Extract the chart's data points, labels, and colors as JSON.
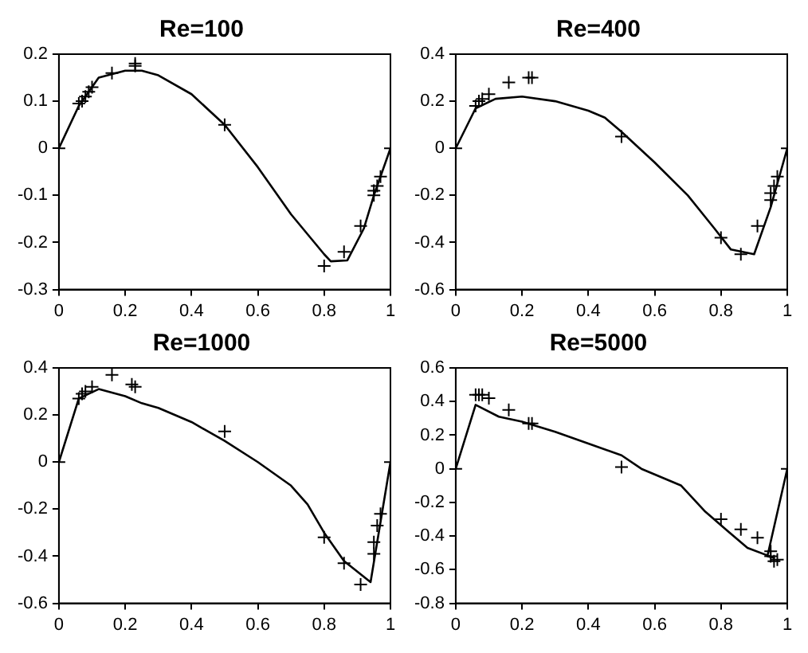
{
  "chart_data": [
    {
      "type": "line",
      "title": "Re=100",
      "xlim": [
        0,
        1
      ],
      "xticks": [
        0,
        0.2,
        0.4,
        0.6,
        0.8,
        1
      ],
      "ylim": [
        -0.3,
        0.2
      ],
      "yticks": [
        -0.3,
        -0.2,
        -0.1,
        0,
        0.1,
        0.2
      ],
      "grid": false,
      "legend": false,
      "series": [
        {
          "type": "line",
          "color": "#000000",
          "marker": "none",
          "line_style": "solid",
          "x": [
            0,
            0.06,
            0.12,
            0.2,
            0.25,
            0.3,
            0.4,
            0.5,
            0.6,
            0.7,
            0.8,
            0.82,
            0.87,
            0.92,
            0.95,
            1
          ],
          "values": [
            0,
            0.09,
            0.15,
            0.165,
            0.165,
            0.155,
            0.115,
            0.05,
            -0.04,
            -0.14,
            -0.225,
            -0.24,
            -0.238,
            -0.17,
            -0.1,
            0
          ]
        },
        {
          "type": "scatter",
          "color": "#000000",
          "marker": "cross",
          "x": [
            0,
            0.06,
            0.07,
            0.08,
            0.09,
            0.1,
            0.16,
            0.23,
            0.23,
            0.5,
            0.8,
            0.86,
            0.91,
            0.95,
            0.95,
            0.96,
            0.97,
            1
          ],
          "values": [
            0,
            0.095,
            0.1,
            0.11,
            0.12,
            0.13,
            0.16,
            0.175,
            0.18,
            0.05,
            -0.25,
            -0.22,
            -0.165,
            -0.1,
            -0.09,
            -0.08,
            -0.06,
            0
          ]
        }
      ]
    },
    {
      "type": "line",
      "title": "Re=400",
      "xlim": [
        0,
        1
      ],
      "xticks": [
        0,
        0.2,
        0.4,
        0.6,
        0.8,
        1
      ],
      "ylim": [
        -0.6,
        0.4
      ],
      "yticks": [
        -0.6,
        -0.4,
        -0.2,
        0,
        0.2,
        0.4
      ],
      "grid": false,
      "legend": false,
      "series": [
        {
          "type": "line",
          "color": "#000000",
          "marker": "none",
          "line_style": "solid",
          "x": [
            0,
            0.06,
            0.12,
            0.2,
            0.3,
            0.4,
            0.45,
            0.5,
            0.6,
            0.7,
            0.78,
            0.83,
            0.9,
            0.95,
            1
          ],
          "values": [
            0,
            0.17,
            0.21,
            0.22,
            0.2,
            0.16,
            0.13,
            0.07,
            -0.06,
            -0.2,
            -0.34,
            -0.43,
            -0.45,
            -0.25,
            0
          ]
        },
        {
          "type": "scatter",
          "color": "#000000",
          "marker": "cross",
          "x": [
            0,
            0.06,
            0.07,
            0.08,
            0.1,
            0.16,
            0.22,
            0.23,
            0.5,
            0.8,
            0.86,
            0.91,
            0.95,
            0.95,
            0.96,
            0.97,
            1
          ],
          "values": [
            0,
            0.18,
            0.2,
            0.21,
            0.23,
            0.28,
            0.3,
            0.3,
            0.05,
            -0.38,
            -0.45,
            -0.33,
            -0.22,
            -0.19,
            -0.16,
            -0.12,
            0
          ]
        }
      ]
    },
    {
      "type": "line",
      "title": "Re=1000",
      "xlim": [
        0,
        1
      ],
      "xticks": [
        0,
        0.2,
        0.4,
        0.6,
        0.8,
        1
      ],
      "ylim": [
        -0.6,
        0.4
      ],
      "yticks": [
        -0.6,
        -0.4,
        -0.2,
        0,
        0.2,
        0.4
      ],
      "grid": false,
      "legend": false,
      "series": [
        {
          "type": "line",
          "color": "#000000",
          "marker": "none",
          "line_style": "solid",
          "x": [
            0,
            0.06,
            0.12,
            0.2,
            0.25,
            0.3,
            0.4,
            0.5,
            0.6,
            0.7,
            0.75,
            0.8,
            0.86,
            0.94,
            1
          ],
          "values": [
            0,
            0.27,
            0.31,
            0.28,
            0.25,
            0.23,
            0.17,
            0.09,
            0,
            -0.1,
            -0.18,
            -0.3,
            -0.42,
            -0.51,
            0
          ]
        },
        {
          "type": "scatter",
          "color": "#000000",
          "marker": "cross",
          "x": [
            0,
            0.06,
            0.07,
            0.08,
            0.1,
            0.16,
            0.22,
            0.23,
            0.5,
            0.8,
            0.86,
            0.91,
            0.95,
            0.95,
            0.96,
            0.97,
            1
          ],
          "values": [
            0,
            0.27,
            0.29,
            0.3,
            0.32,
            0.37,
            0.33,
            0.32,
            0.13,
            -0.32,
            -0.43,
            -0.52,
            -0.39,
            -0.34,
            -0.27,
            -0.22,
            0
          ]
        }
      ]
    },
    {
      "type": "line",
      "title": "Re=5000",
      "xlim": [
        0,
        1
      ],
      "xticks": [
        0,
        0.2,
        0.4,
        0.6,
        0.8,
        1
      ],
      "ylim": [
        -0.8,
        0.6
      ],
      "yticks": [
        -0.8,
        -0.6,
        -0.4,
        -0.2,
        0,
        0.2,
        0.4,
        0.6
      ],
      "grid": false,
      "legend": false,
      "series": [
        {
          "type": "line",
          "color": "#000000",
          "marker": "none",
          "line_style": "solid",
          "x": [
            0,
            0.06,
            0.13,
            0.2,
            0.3,
            0.4,
            0.5,
            0.56,
            0.68,
            0.75,
            0.82,
            0.88,
            0.96,
            0.94,
            1
          ],
          "values": [
            0,
            0.38,
            0.31,
            0.28,
            0.22,
            0.15,
            0.08,
            0,
            -0.1,
            -0.25,
            -0.37,
            -0.47,
            -0.53,
            -0.52,
            0
          ]
        },
        {
          "type": "scatter",
          "color": "#000000",
          "marker": "cross",
          "x": [
            0,
            0.06,
            0.07,
            0.08,
            0.1,
            0.16,
            0.22,
            0.23,
            0.5,
            0.8,
            0.86,
            0.91,
            0.95,
            0.95,
            0.96,
            0.97,
            1
          ],
          "values": [
            0,
            0.44,
            0.44,
            0.44,
            0.42,
            0.35,
            0.27,
            0.27,
            0.01,
            -0.3,
            -0.36,
            -0.41,
            -0.49,
            -0.52,
            -0.55,
            -0.54,
            0
          ]
        }
      ]
    }
  ]
}
